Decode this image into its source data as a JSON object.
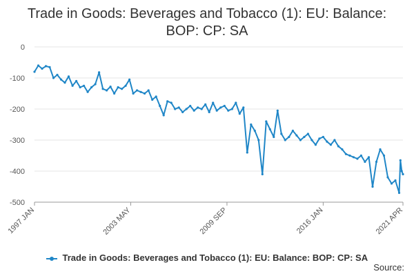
{
  "title_line1": "Trade in Goods: Beverages and Tobacco (1): EU: Balance:",
  "title_line2": "BOP: CP: SA",
  "source": "Source:",
  "colors": {
    "series": "#1f86c7",
    "grid": "#e6e6e6",
    "axis": "#999999"
  },
  "chart_data": {
    "type": "line",
    "title": "Trade in Goods: Beverages and Tobacco (1): EU: Balance: BOP: CP: SA",
    "xlabel": "",
    "ylabel": "",
    "ylim": [
      -500,
      0
    ],
    "yticks": [
      0,
      -100,
      -200,
      -300,
      -400,
      -500
    ],
    "xlim": [
      "1997 JAN",
      "2021 APR"
    ],
    "xticks": [
      "1997 JAN",
      "2003 MAY",
      "2009 SEP",
      "2016 JAN",
      "2021 APR"
    ],
    "grid": true,
    "legend_position": "bottom",
    "series": [
      {
        "name": "Trade in Goods: Beverages and Tobacco (1): EU: Balance: BOP: CP: SA",
        "points": [
          [
            "1997 JAN",
            -80
          ],
          [
            "1997 APR",
            -60
          ],
          [
            "1997 JUL",
            -70
          ],
          [
            "1997 OCT",
            -62
          ],
          [
            "1998 JAN",
            -65
          ],
          [
            "1998 APR",
            -100
          ],
          [
            "1998 JUL",
            -90
          ],
          [
            "1998 OCT",
            -105
          ],
          [
            "1999 JAN",
            -115
          ],
          [
            "1999 APR",
            -95
          ],
          [
            "1999 JUL",
            -125
          ],
          [
            "1999 OCT",
            -110
          ],
          [
            "2000 JAN",
            -130
          ],
          [
            "2000 APR",
            -125
          ],
          [
            "2000 JUL",
            -145
          ],
          [
            "2000 OCT",
            -130
          ],
          [
            "2001 JAN",
            -120
          ],
          [
            "2001 APR",
            -82
          ],
          [
            "2001 JUL",
            -135
          ],
          [
            "2001 OCT",
            -140
          ],
          [
            "2002 JAN",
            -128
          ],
          [
            "2002 APR",
            -150
          ],
          [
            "2002 JUL",
            -130
          ],
          [
            "2002 OCT",
            -135
          ],
          [
            "2003 JAN",
            -125
          ],
          [
            "2003 APR",
            -105
          ],
          [
            "2003 JUL",
            -150
          ],
          [
            "2003 OCT",
            -140
          ],
          [
            "2004 JAN",
            -145
          ],
          [
            "2004 APR",
            -150
          ],
          [
            "2004 JUL",
            -140
          ],
          [
            "2004 OCT",
            -170
          ],
          [
            "2005 JAN",
            -160
          ],
          [
            "2005 APR",
            -190
          ],
          [
            "2005 JUL",
            -220
          ],
          [
            "2005 OCT",
            -175
          ],
          [
            "2006 JAN",
            -180
          ],
          [
            "2006 APR",
            -200
          ],
          [
            "2006 JUL",
            -195
          ],
          [
            "2006 OCT",
            -210
          ],
          [
            "2007 JAN",
            -200
          ],
          [
            "2007 APR",
            -190
          ],
          [
            "2007 JUL",
            -205
          ],
          [
            "2007 OCT",
            -195
          ],
          [
            "2008 JAN",
            -200
          ],
          [
            "2008 APR",
            -185
          ],
          [
            "2008 JUL",
            -210
          ],
          [
            "2008 OCT",
            -180
          ],
          [
            "2009 JAN",
            -205
          ],
          [
            "2009 APR",
            -195
          ],
          [
            "2009 JUL",
            -190
          ],
          [
            "2009 OCT",
            -205
          ],
          [
            "2010 JAN",
            -200
          ],
          [
            "2010 APR",
            -180
          ],
          [
            "2010 JUL",
            -215
          ],
          [
            "2010 OCT",
            -195
          ],
          [
            "2011 JAN",
            -340
          ],
          [
            "2011 APR",
            -250
          ],
          [
            "2011 JUL",
            -270
          ],
          [
            "2011 OCT",
            -300
          ],
          [
            "2012 JAN",
            -410
          ],
          [
            "2012 APR",
            -240
          ],
          [
            "2012 JUL",
            -265
          ],
          [
            "2012 OCT",
            -290
          ],
          [
            "2013 JAN",
            -205
          ],
          [
            "2013 APR",
            -280
          ],
          [
            "2013 JUL",
            -300
          ],
          [
            "2013 OCT",
            -290
          ],
          [
            "2014 JAN",
            -270
          ],
          [
            "2014 APR",
            -285
          ],
          [
            "2014 JUL",
            -300
          ],
          [
            "2014 OCT",
            -290
          ],
          [
            "2015 JAN",
            -280
          ],
          [
            "2015 APR",
            -300
          ],
          [
            "2015 JUL",
            -315
          ],
          [
            "2015 OCT",
            -295
          ],
          [
            "2016 JAN",
            -290
          ],
          [
            "2016 APR",
            -305
          ],
          [
            "2016 JUL",
            -315
          ],
          [
            "2016 OCT",
            -300
          ],
          [
            "2017 JAN",
            -320
          ],
          [
            "2017 APR",
            -330
          ],
          [
            "2017 JUL",
            -345
          ],
          [
            "2017 OCT",
            -350
          ],
          [
            "2018 JAN",
            -355
          ],
          [
            "2018 APR",
            -360
          ],
          [
            "2018 JUL",
            -350
          ],
          [
            "2018 OCT",
            -370
          ],
          [
            "2019 JAN",
            -355
          ],
          [
            "2019 APR",
            -450
          ],
          [
            "2019 JUL",
            -370
          ],
          [
            "2019 OCT",
            -330
          ],
          [
            "2020 JAN",
            -350
          ],
          [
            "2020 APR",
            -420
          ],
          [
            "2020 JUL",
            -440
          ],
          [
            "2020 OCT",
            -430
          ],
          [
            "2021 JAN",
            -470
          ],
          [
            "2021 FEB",
            -365
          ],
          [
            "2021 MAR",
            -400
          ],
          [
            "2021 APR",
            -410
          ]
        ]
      }
    ]
  }
}
